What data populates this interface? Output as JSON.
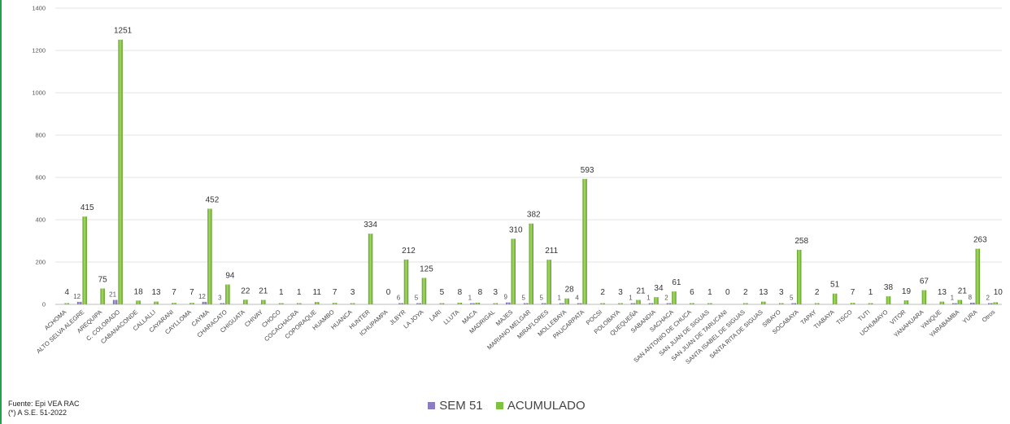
{
  "footer": {
    "source": "Fuente: Epi VEA RAC",
    "note": "(*) A S.E. 51-2022"
  },
  "chart_data": {
    "type": "bar",
    "ylim": [
      0,
      1400
    ],
    "yticks": [
      0,
      200,
      400,
      600,
      800,
      1000,
      1200,
      1400
    ],
    "grid": true,
    "legend_position": "bottom",
    "categories": [
      "ACHOMA",
      "ALTO SELVA ALEGRE",
      "AREQUIPA",
      "C. COLORADO",
      "CABANACONDE",
      "CALLALLI",
      "CAYARANI",
      "CAYLLOMA",
      "CAYMA",
      "CHARACATO",
      "CHIGUATA",
      "CHIVAY",
      "CHOCO",
      "COCACHACRA",
      "COPORAQUE",
      "HUAMBO",
      "HUANCA",
      "HUNTER",
      "ICHUPAMPA",
      "JLBYR",
      "LA JOYA",
      "LARI",
      "LLUTA",
      "MACA",
      "MADRIGAL",
      "MAJES",
      "MARIANO MELGAR",
      "MIRAFLORES",
      "MOLLEBAYA",
      "PAUCARPATA",
      "POCSI",
      "POLOBAYA",
      "QUEQUEÑA",
      "SABANDIA",
      "SACHACA",
      "SAN ANTONIO DE CHUCA",
      "SAN JUAN DE SIGUAS",
      "SAN JUAN DE TARUCANI",
      "SANTA ISABEL DE SIGUAS",
      "SANTA RITA DE SIGUAS",
      "SIBAYO",
      "SOCABAYA",
      "TAPAY",
      "TIABAYA",
      "TISCO",
      "TUTI",
      "UCHUMAYO",
      "VITOR",
      "YANAHUARA",
      "YANQUE",
      "YARABAMBA",
      "YURA",
      "Otros"
    ],
    "series": [
      {
        "name": "SEM 51",
        "color": "#8e7cc3",
        "values": [
          null,
          12,
          null,
          21,
          null,
          null,
          null,
          null,
          12,
          3,
          null,
          null,
          null,
          null,
          null,
          null,
          null,
          null,
          null,
          6,
          5,
          null,
          null,
          1,
          null,
          9,
          5,
          5,
          1,
          4,
          null,
          null,
          1,
          1,
          2,
          null,
          null,
          null,
          null,
          null,
          null,
          5,
          null,
          null,
          null,
          null,
          null,
          null,
          null,
          null,
          1,
          8,
          2
        ]
      },
      {
        "name": "ACUMULADO",
        "color": "#7fc241",
        "values": [
          4,
          415,
          75,
          1251,
          18,
          13,
          7,
          7,
          452,
          94,
          22,
          21,
          1,
          1,
          11,
          7,
          3,
          334,
          0,
          212,
          125,
          5,
          8,
          8,
          3,
          310,
          382,
          211,
          28,
          593,
          2,
          3,
          21,
          34,
          61,
          6,
          1,
          0,
          2,
          13,
          3,
          258,
          2,
          51,
          7,
          1,
          38,
          19,
          67,
          13,
          21,
          263,
          10
        ]
      }
    ]
  }
}
